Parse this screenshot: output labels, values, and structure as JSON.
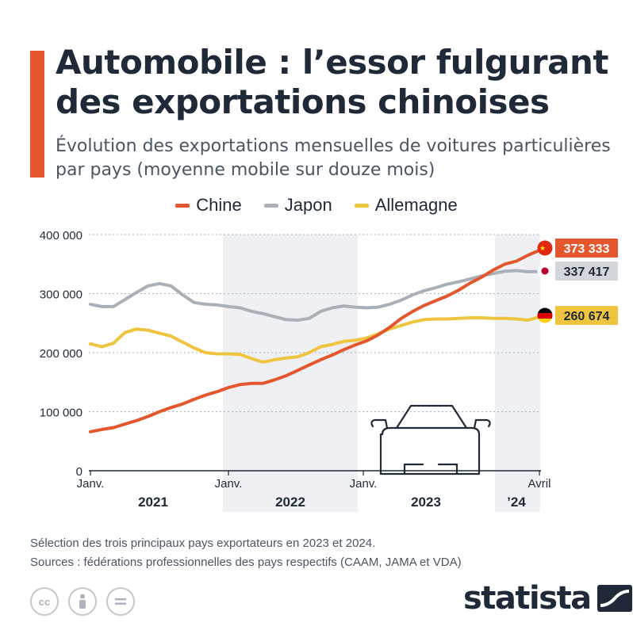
{
  "header": {
    "title": "Automobile : l’essor fulgurant des exportations chinoises",
    "subtitle": "Évolution des exportations mensuelles de voitures particulières par pays (moyenne mobile sur douze mois)"
  },
  "colors": {
    "accent": "#e4572e",
    "chine": "#e4572e",
    "japon": "#aab0b8",
    "allemagne": "#efc53f",
    "shade": "#eef0f4",
    "text": "#1f2937"
  },
  "chart_data": {
    "type": "line",
    "x_start": "2021-01",
    "x_end": "2024-04",
    "x_ticks": [
      "Janv.",
      "Janv.",
      "Janv.",
      "Avril"
    ],
    "year_labels": [
      "2021",
      "2022",
      "2023",
      "’24"
    ],
    "yticks": [
      "400 000",
      "300 000",
      "200 000",
      "100 000",
      "0"
    ],
    "ylim": [
      0,
      400000
    ],
    "grid": true,
    "legend": "top-center",
    "series": [
      {
        "name": "Chine",
        "color": "#e4572e",
        "values": [
          66000,
          70000,
          73000,
          79000,
          85000,
          92000,
          100000,
          107000,
          113000,
          121000,
          128000,
          134000,
          141000,
          146000,
          148000,
          148000,
          154000,
          161000,
          170000,
          179000,
          188000,
          196000,
          205000,
          213000,
          220000,
          230000,
          243000,
          258000,
          270000,
          280000,
          288000,
          296000,
          306000,
          318000,
          328000,
          340000,
          350000,
          355000,
          365000,
          373333
        ],
        "end_label": "373 333"
      },
      {
        "name": "Japon",
        "color": "#aab0b8",
        "values": [
          282000,
          278000,
          278000,
          290000,
          302000,
          313000,
          317000,
          313000,
          298000,
          285000,
          282000,
          281000,
          278000,
          276000,
          270000,
          266000,
          261000,
          256000,
          255000,
          258000,
          270000,
          276000,
          279000,
          277000,
          276000,
          277000,
          282000,
          289000,
          298000,
          305000,
          310000,
          316000,
          320000,
          325000,
          330000,
          334000,
          338000,
          339000,
          337000,
          337417
        ],
        "end_label": "337 417"
      },
      {
        "name": "Allemagne",
        "color": "#efc53f",
        "values": [
          215000,
          210000,
          216000,
          234000,
          240000,
          238000,
          233000,
          228000,
          218000,
          208000,
          200000,
          198000,
          198000,
          197000,
          190000,
          184000,
          188000,
          191000,
          193000,
          200000,
          210000,
          214000,
          219000,
          221000,
          225000,
          232000,
          240000,
          246000,
          252000,
          256000,
          257000,
          257000,
          258000,
          259000,
          259000,
          258000,
          258000,
          257000,
          255000,
          260674
        ],
        "end_label": "260 674"
      }
    ]
  },
  "footer": {
    "note": "Sélection des trois principaux pays exportateurs en 2023 et 2024.",
    "sources": "Sources : fédérations professionnelles des pays respectifs (CAAM, JAMA et VDA)",
    "brand": "statista"
  },
  "license_icons": [
    "cc-icon",
    "by-person-icon",
    "nd-equals-icon"
  ]
}
